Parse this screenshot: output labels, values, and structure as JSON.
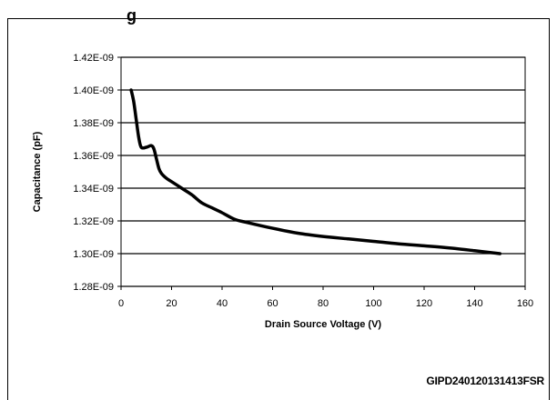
{
  "page": {
    "top_title_fragment": "g",
    "footer_id": "GIPD240120131413FSR"
  },
  "chart_data": {
    "type": "line",
    "title": "",
    "xlabel": "Drain Source Voltage (V)",
    "ylabel": "Capacitance (pF)",
    "xlim": [
      0,
      160
    ],
    "ylim": [
      1.28e-09,
      1.42e-09
    ],
    "x_ticks": [
      0,
      20,
      40,
      60,
      80,
      100,
      120,
      140,
      160
    ],
    "x_tick_labels": [
      "0",
      "20",
      "40",
      "60",
      "80",
      "100",
      "120",
      "140",
      "160"
    ],
    "y_ticks": [
      1.28e-09,
      1.3e-09,
      1.32e-09,
      1.34e-09,
      1.36e-09,
      1.38e-09,
      1.4e-09,
      1.42e-09
    ],
    "y_tick_labels": [
      "1.28E-09",
      "1.30E-09",
      "1.32E-09",
      "1.34E-09",
      "1.36E-09",
      "1.38E-09",
      "1.40E-09",
      "1.42E-09"
    ],
    "grid": "horizontal",
    "legend": "none",
    "line_color": "#000000",
    "series": [
      {
        "x": [
          4,
          5,
          6,
          7,
          8,
          10,
          12,
          13,
          14,
          15,
          16,
          18,
          20,
          24,
          28,
          32,
          36,
          40,
          45,
          50,
          60,
          70,
          80,
          90,
          100,
          110,
          120,
          130,
          140,
          150
        ],
        "values": [
          1.4e-09,
          1.393e-09,
          1.382e-09,
          1.371e-09,
          1.365e-09,
          1.365e-09,
          1.366e-09,
          1.364e-09,
          1.358e-09,
          1.352e-09,
          1.349e-09,
          1.346e-09,
          1.344e-09,
          1.34e-09,
          1.336e-09,
          1.331e-09,
          1.328e-09,
          1.325e-09,
          1.321e-09,
          1.319e-09,
          1.3155e-09,
          1.3125e-09,
          1.3105e-09,
          1.309e-09,
          1.3075e-09,
          1.306e-09,
          1.3048e-09,
          1.3035e-09,
          1.3018e-09,
          1.3e-09
        ]
      }
    ]
  }
}
